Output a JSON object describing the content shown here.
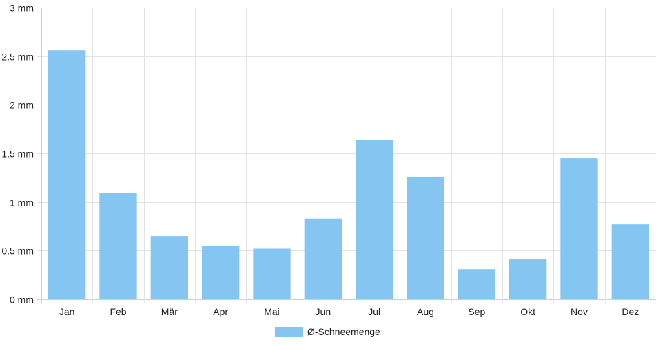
{
  "chart_data": {
    "type": "bar",
    "categories": [
      "Jan",
      "Feb",
      "Mär",
      "Apr",
      "Mai",
      "Jun",
      "Jul",
      "Aug",
      "Sep",
      "Okt",
      "Nov",
      "Dez"
    ],
    "series": [
      {
        "name": "Ø-Schneemenge",
        "values": [
          2.56,
          1.09,
          0.65,
          0.55,
          0.52,
          0.83,
          1.64,
          1.26,
          0.31,
          0.41,
          1.45,
          0.77
        ]
      }
    ],
    "y_unit": "mm",
    "ylim": [
      0,
      3
    ],
    "y_ticks": [
      "0 mm",
      "0.5 mm",
      "1 mm",
      "1.5 mm",
      "2 mm",
      "2.5 mm",
      "3 mm"
    ],
    "grid": true,
    "legend_position": "bottom-center",
    "colors": {
      "bar": "#85C5F2",
      "grid": "#e3e3e3",
      "axis": "#cfcfcf"
    }
  }
}
